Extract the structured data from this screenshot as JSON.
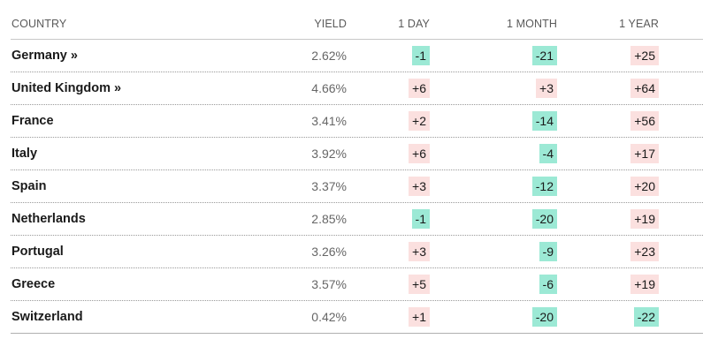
{
  "headers": {
    "country": "COUNTRY",
    "yield": "YIELD",
    "day": "1 DAY",
    "month": "1 MONTH",
    "year": "1 YEAR"
  },
  "rows": [
    {
      "country": "Germany »",
      "yield": "2.62%",
      "day": "-1",
      "month": "-21",
      "year": "+25"
    },
    {
      "country": "United Kingdom »",
      "yield": "4.66%",
      "day": "+6",
      "month": "+3",
      "year": "+64"
    },
    {
      "country": "France",
      "yield": "3.41%",
      "day": "+2",
      "month": "-14",
      "year": "+56"
    },
    {
      "country": "Italy",
      "yield": "3.92%",
      "day": "+6",
      "month": "-4",
      "year": "+17"
    },
    {
      "country": "Spain",
      "yield": "3.37%",
      "day": "+3",
      "month": "-12",
      "year": "+20"
    },
    {
      "country": "Netherlands",
      "yield": "2.85%",
      "day": "-1",
      "month": "-20",
      "year": "+19"
    },
    {
      "country": "Portugal",
      "yield": "3.26%",
      "day": "+3",
      "month": "-9",
      "year": "+23"
    },
    {
      "country": "Greece",
      "yield": "3.57%",
      "day": "+5",
      "month": "-6",
      "year": "+19"
    },
    {
      "country": "Switzerland",
      "yield": "0.42%",
      "day": "+1",
      "month": "-20",
      "year": "-22"
    }
  ],
  "colors": {
    "positive_bg": "#fbe0df",
    "negative_bg": "#9ce9d5"
  }
}
